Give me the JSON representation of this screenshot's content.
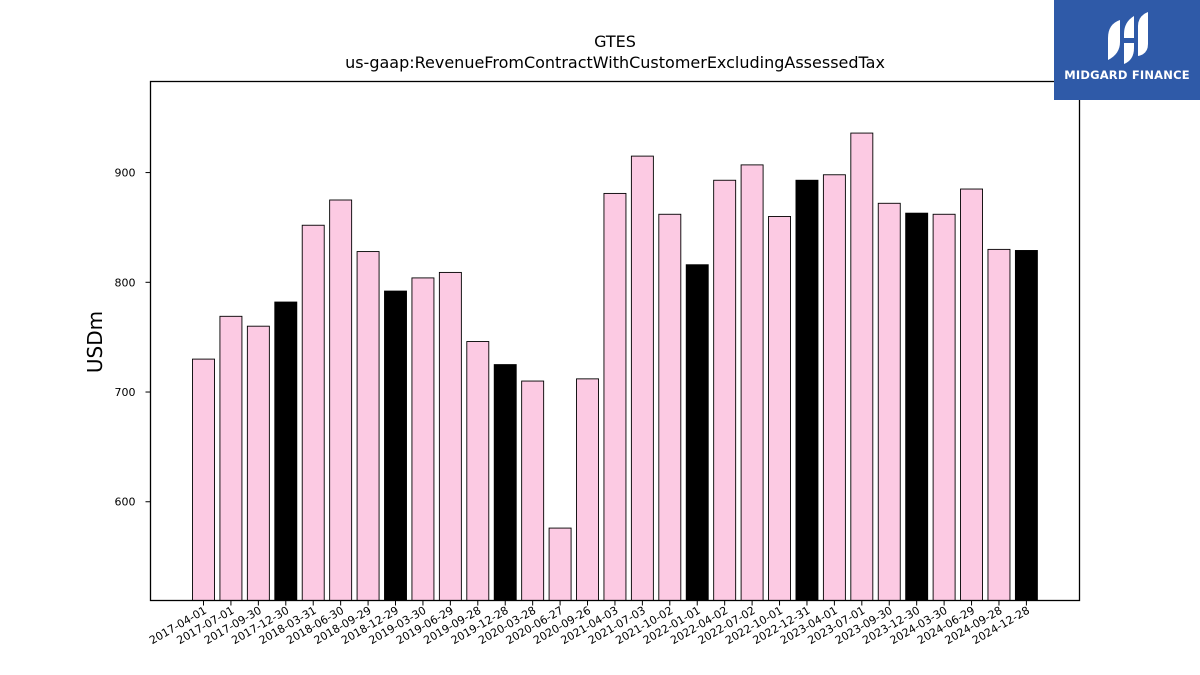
{
  "logo": {
    "text": "MIDGARD FINANCE"
  },
  "colors": {
    "normal_bar": "#fccae3",
    "q4_bar": "#000000",
    "edge": "#000000",
    "logo_bg": "#2f5aa8"
  },
  "chart_data": {
    "type": "bar",
    "title": "GTES",
    "subtitle": "us-gaap:RevenueFromContractWithCustomerExcludingAssessedTax",
    "xlabel": "",
    "ylabel": "USDm",
    "ylim": [
      510,
      983
    ],
    "yticks": [
      600,
      700,
      800,
      900
    ],
    "grid": false,
    "categories": [
      "2017-04-01",
      "2017-07-01",
      "2017-09-30",
      "2017-12-30",
      "2018-03-31",
      "2018-06-30",
      "2018-09-29",
      "2018-12-29",
      "2019-03-30",
      "2019-06-29",
      "2019-09-28",
      "2019-12-28",
      "2020-03-28",
      "2020-06-27",
      "2020-09-26",
      "2021-04-03",
      "2021-07-03",
      "2021-10-02",
      "2022-01-01",
      "2022-04-02",
      "2022-07-02",
      "2022-10-01",
      "2022-12-31",
      "2023-04-01",
      "2023-07-01",
      "2023-09-30",
      "2023-12-30",
      "2024-03-30",
      "2024-06-29",
      "2024-09-28",
      "2024-12-28"
    ],
    "values": [
      730,
      769,
      760,
      782,
      852,
      875,
      828,
      792,
      804,
      809,
      746,
      725,
      710,
      576,
      712,
      881,
      915,
      862,
      816,
      893,
      907,
      860,
      893,
      898,
      936,
      872,
      863,
      862,
      885,
      830,
      829
    ],
    "highlight": [
      false,
      false,
      false,
      true,
      false,
      false,
      false,
      true,
      false,
      false,
      false,
      true,
      false,
      false,
      false,
      false,
      false,
      false,
      true,
      false,
      false,
      false,
      true,
      false,
      false,
      false,
      true,
      false,
      false,
      false,
      true
    ]
  }
}
